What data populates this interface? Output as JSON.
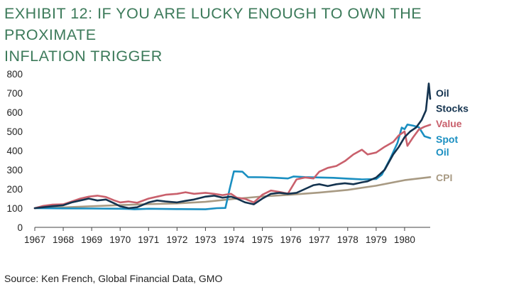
{
  "title": {
    "line1": "EXHIBIT 12: IF YOU ARE LUCKY ENOUGH TO OWN THE PROXIMATE",
    "line2": "INFLATION TRIGGER"
  },
  "source": "Source: Ken French, Global Financial Data, GMO",
  "chart_data": {
    "type": "line",
    "title": "EXHIBIT 12: IF YOU ARE LUCKY ENOUGH TO OWN THE PROXIMATE INFLATION TRIGGER",
    "xlabel": "",
    "ylabel": "",
    "xlim": [
      1967,
      1980.9
    ],
    "ylim": [
      0,
      800
    ],
    "yticks": [
      0,
      100,
      200,
      300,
      400,
      500,
      600,
      700,
      800
    ],
    "xticks": [
      1967,
      1968,
      1969,
      1970,
      1971,
      1972,
      1973,
      1974,
      1975,
      1976,
      1977,
      1978,
      1979,
      1980
    ],
    "grid": false,
    "legend": "inline-right",
    "series": [
      {
        "name": "CPI",
        "label_lines": [
          "CPI"
        ],
        "color": "#a89a83",
        "x": [
          1967,
          1968,
          1969,
          1970,
          1971,
          1972,
          1973,
          1974,
          1975,
          1976,
          1977,
          1978,
          1979,
          1980,
          1980.9
        ],
        "values": [
          100,
          104,
          110,
          116,
          121,
          125,
          133,
          148,
          161,
          170,
          181,
          195,
          217,
          246,
          262
        ]
      },
      {
        "name": "Spot Oil",
        "label_lines": [
          "Spot",
          "Oil"
        ],
        "color": "#1a8fc1",
        "x": [
          1967,
          1968,
          1969,
          1970,
          1970.3,
          1970.5,
          1971,
          1972,
          1973,
          1973.4,
          1973.7,
          1973.85,
          1974,
          1974.3,
          1974.5,
          1975,
          1975.5,
          1975.9,
          1976.1,
          1976.5,
          1977,
          1977.5,
          1978,
          1978.5,
          1979,
          1979.2,
          1979.5,
          1979.75,
          1979.9,
          1980,
          1980.1,
          1980.3,
          1980.5,
          1980.7,
          1980.9
        ],
        "values": [
          100,
          99,
          98,
          97,
          96,
          94,
          97,
          95,
          94,
          100,
          101,
          200,
          292,
          290,
          262,
          261,
          258,
          255,
          265,
          262,
          260,
          258,
          254,
          250,
          252,
          275,
          360,
          440,
          520,
          512,
          536,
          530,
          522,
          475,
          465
        ]
      },
      {
        "name": "Value",
        "label_lines": [
          "Value"
        ],
        "color": "#c9606c",
        "x": [
          1967,
          1967.3,
          1967.6,
          1968,
          1968.3,
          1968.6,
          1968.9,
          1969.2,
          1969.5,
          1969.8,
          1970,
          1970.3,
          1970.6,
          1971,
          1971.3,
          1971.6,
          1972,
          1972.3,
          1972.6,
          1973,
          1973.3,
          1973.6,
          1973.9,
          1974.1,
          1974.4,
          1974.7,
          1975,
          1975.3,
          1975.6,
          1975.9,
          1976.2,
          1976.5,
          1976.8,
          1977,
          1977.3,
          1977.6,
          1977.9,
          1978.2,
          1978.5,
          1978.7,
          1979,
          1979.3,
          1979.6,
          1979.8,
          1980,
          1980.1,
          1980.3,
          1980.5,
          1980.7,
          1980.9
        ],
        "values": [
          100,
          112,
          118,
          120,
          135,
          150,
          160,
          165,
          158,
          140,
          130,
          135,
          128,
          150,
          160,
          170,
          175,
          183,
          175,
          180,
          175,
          168,
          175,
          155,
          148,
          130,
          170,
          192,
          185,
          176,
          250,
          260,
          255,
          290,
          310,
          320,
          345,
          380,
          405,
          380,
          390,
          420,
          445,
          480,
          500,
          425,
          470,
          510,
          525,
          535
        ]
      },
      {
        "name": "Oil Stocks",
        "label_lines": [
          "Oil",
          "Stocks"
        ],
        "color": "#14334f",
        "x": [
          1967,
          1967.3,
          1967.6,
          1968,
          1968.3,
          1968.6,
          1968.9,
          1969.2,
          1969.5,
          1969.8,
          1970,
          1970.3,
          1970.6,
          1971,
          1971.3,
          1971.6,
          1972,
          1972.3,
          1972.6,
          1973,
          1973.3,
          1973.6,
          1973.9,
          1974.1,
          1974.4,
          1974.7,
          1975,
          1975.3,
          1975.6,
          1975.9,
          1976.2,
          1976.5,
          1976.8,
          1977,
          1977.3,
          1977.6,
          1977.9,
          1978.2,
          1978.5,
          1978.7,
          1979,
          1979.3,
          1979.6,
          1979.8,
          1980,
          1980.2,
          1980.4,
          1980.6,
          1980.75,
          1980.85,
          1980.9
        ],
        "values": [
          100,
          105,
          110,
          115,
          130,
          140,
          150,
          140,
          145,
          125,
          110,
          100,
          105,
          130,
          140,
          135,
          130,
          138,
          145,
          160,
          165,
          155,
          160,
          150,
          130,
          120,
          150,
          175,
          180,
          175,
          180,
          200,
          220,
          225,
          215,
          225,
          230,
          225,
          235,
          240,
          260,
          300,
          380,
          420,
          470,
          500,
          520,
          560,
          610,
          750,
          670
        ]
      }
    ]
  }
}
